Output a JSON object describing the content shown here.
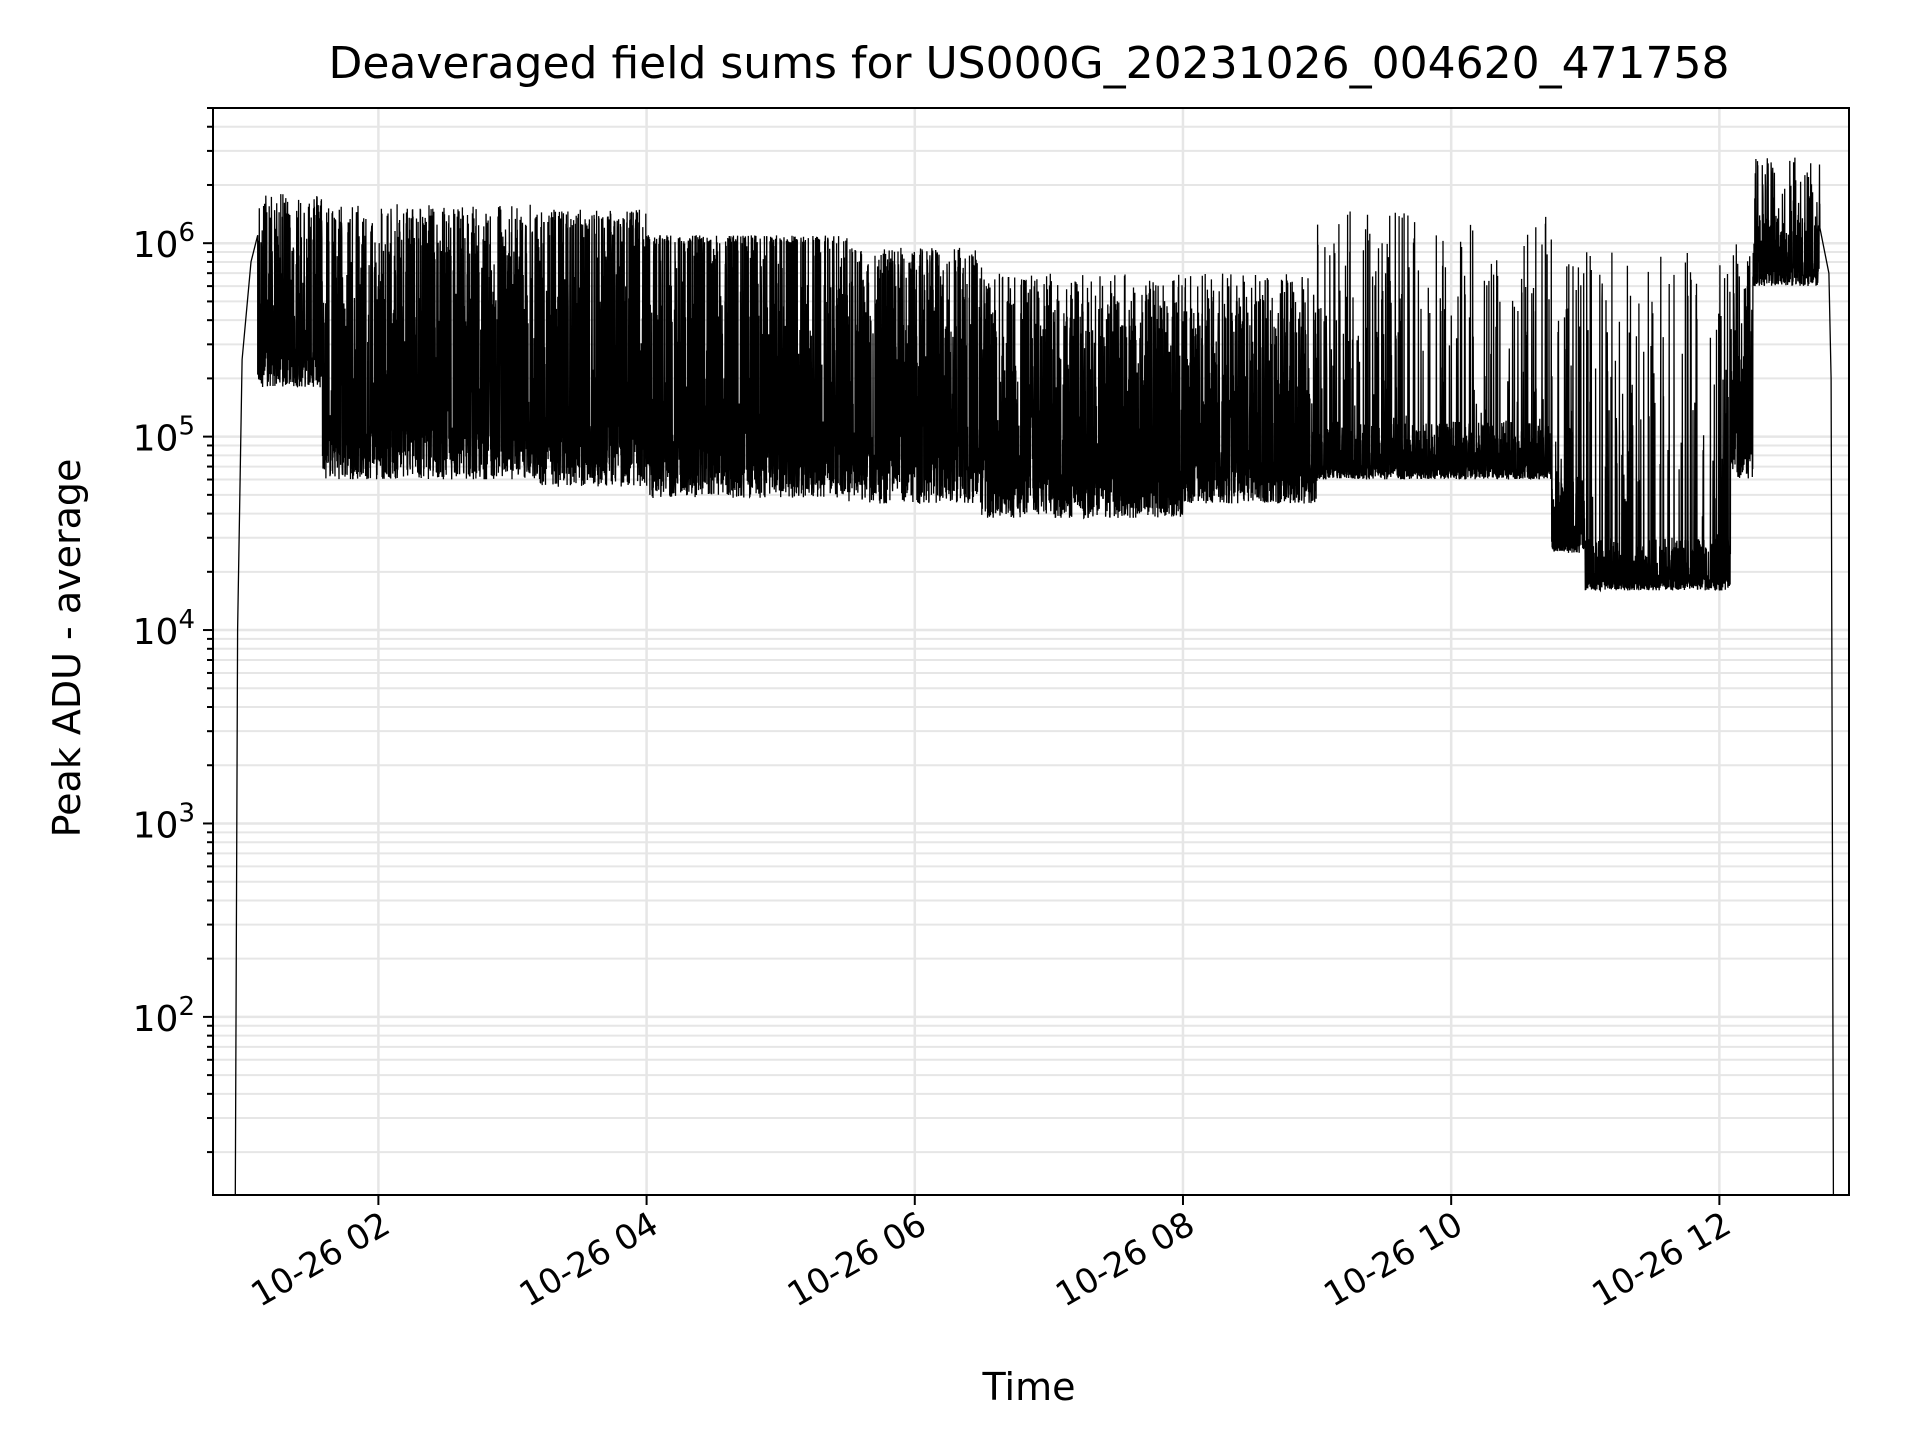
{
  "chart_data": {
    "type": "line",
    "title": "Deaveraged field sums for US000G_20231026_004620_471758",
    "xlabel": "Time",
    "ylabel": "Peak ADU - average",
    "yscale": "log",
    "ylim": [
      12,
      5000000
    ],
    "xlim": [
      "2023-10-26 00:46",
      "2023-10-26 12:58"
    ],
    "x_tick_labels": [
      {
        "time": "2023-10-26 02:00",
        "label": "10-26 02"
      },
      {
        "time": "2023-10-26 04:00",
        "label": "10-26 04"
      },
      {
        "time": "2023-10-26 06:00",
        "label": "10-26 06"
      },
      {
        "time": "2023-10-26 08:00",
        "label": "10-26 08"
      },
      {
        "time": "2023-10-26 10:00",
        "label": "10-26 10"
      },
      {
        "time": "2023-10-26 12:00",
        "label": "10-26 12"
      }
    ],
    "y_tick_labels": [
      {
        "value": 100,
        "mantissa": "10",
        "exponent": "2"
      },
      {
        "value": 1000,
        "mantissa": "10",
        "exponent": "3"
      },
      {
        "value": 10000,
        "mantissa": "10",
        "exponent": "4"
      },
      {
        "value": 100000,
        "mantissa": "10",
        "exponent": "5"
      },
      {
        "value": 1000000,
        "mantissa": "10",
        "exponent": "6"
      }
    ],
    "grid": true,
    "series_color": "#000000",
    "segments": [
      {
        "start": "2023-10-26 01:06",
        "end": "2023-10-26 01:35",
        "floor": 180000,
        "ceiling": 1300000,
        "peak": 1800000
      },
      {
        "start": "2023-10-26 01:35",
        "end": "2023-10-26 03:10",
        "floor": 60000,
        "ceiling": 1000000,
        "peak": 1600000
      },
      {
        "start": "2023-10-26 03:10",
        "end": "2023-10-26 04:00",
        "floor": 55000,
        "ceiling": 1200000,
        "peak": 1500000
      },
      {
        "start": "2023-10-26 04:00",
        "end": "2023-10-26 05:30",
        "floor": 48000,
        "ceiling": 1000000,
        "peak": 1100000
      },
      {
        "start": "2023-10-26 05:30",
        "end": "2023-10-26 06:30",
        "floor": 45000,
        "ceiling": 700000,
        "peak": 950000
      },
      {
        "start": "2023-10-26 06:30",
        "end": "2023-10-26 08:00",
        "floor": 38000,
        "ceiling": 400000,
        "peak": 700000
      },
      {
        "start": "2023-10-26 08:00",
        "end": "2023-10-26 09:00",
        "floor": 45000,
        "ceiling": 400000,
        "peak": 700000
      },
      {
        "start": "2023-10-26 09:00",
        "end": "2023-10-26 10:45",
        "floor": 60000,
        "ceiling": 120000,
        "peak": 1500000
      },
      {
        "start": "2023-10-26 10:45",
        "end": "2023-10-26 11:00",
        "floor": 25000,
        "ceiling": 60000,
        "peak": 900000
      },
      {
        "start": "2023-10-26 11:00",
        "end": "2023-10-26 12:05",
        "floor": 16000,
        "ceiling": 30000,
        "peak": 1000000
      },
      {
        "start": "2023-10-26 12:05",
        "end": "2023-10-26 12:15",
        "floor": 60000,
        "ceiling": 400000,
        "peak": 1000000
      },
      {
        "start": "2023-10-26 12:15",
        "end": "2023-10-26 12:45",
        "floor": 600000,
        "ceiling": 1400000,
        "peak": 2800000
      }
    ],
    "edges": [
      {
        "time": "2023-10-26 00:56",
        "value": 12
      },
      {
        "time": "2023-10-26 00:57",
        "value": 10000
      },
      {
        "time": "2023-10-26 00:59",
        "value": 250000
      },
      {
        "time": "2023-10-26 01:03",
        "value": 800000
      },
      {
        "time": "2023-10-26 01:06",
        "value": 1100000
      },
      {
        "time": "2023-10-26 12:45",
        "value": 1200000
      },
      {
        "time": "2023-10-26 12:49",
        "value": 700000
      },
      {
        "time": "2023-10-26 12:50",
        "value": 200000
      },
      {
        "time": "2023-10-26 12:51",
        "value": 12
      }
    ]
  }
}
